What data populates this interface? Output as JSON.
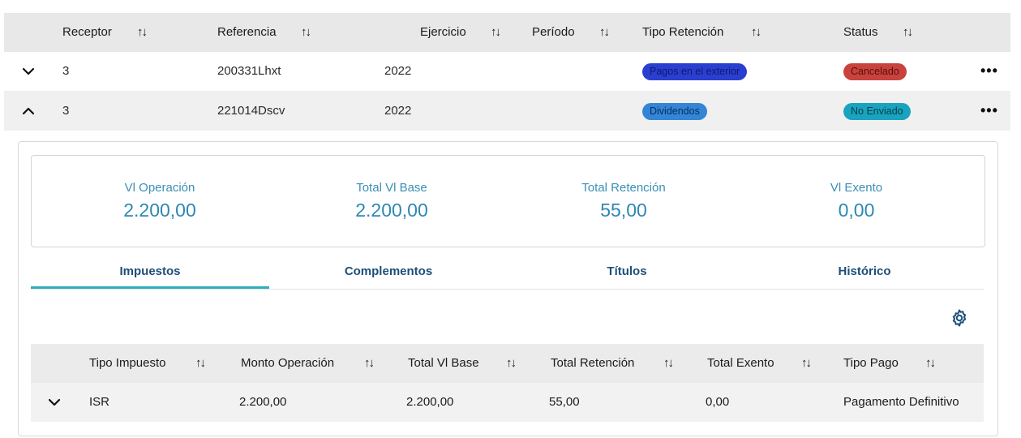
{
  "table": {
    "headers": {
      "receptor": "Receptor",
      "referencia": "Referencia",
      "ejercicio": "Ejercicio",
      "periodo": "Período",
      "tipo_retencion": "Tipo Retención",
      "status": "Status"
    },
    "sort_glyph": "↑↓",
    "rows": [
      {
        "receptor": "3",
        "referencia": "200331Lhxt",
        "ejercicio": "2022",
        "periodo": "",
        "tipo_retencion": "Pagos en el exterior",
        "status": "Cancelado",
        "expanded": false
      },
      {
        "receptor": "3",
        "referencia": "221014Dscv",
        "ejercicio": "2022",
        "periodo": "",
        "tipo_retencion": "Dividendos",
        "status": "No Enviado",
        "expanded": true
      }
    ],
    "more_glyph": "•••"
  },
  "colors": {
    "badge_pagos": "#2a3fcf",
    "badge_cancelado": "#c8433d",
    "badge_dividendos": "#3385d6",
    "badge_no_enviado": "#1aa3bf",
    "accent_teal": "#2eaebe",
    "summary_blue": "#2e87b3",
    "tab_text": "#1d4f78"
  },
  "detail": {
    "summary": [
      {
        "label": "Vl Operación",
        "value": "2.200,00"
      },
      {
        "label": "Total Vl Base",
        "value": "2.200,00"
      },
      {
        "label": "Total Retención",
        "value": "55,00"
      },
      {
        "label": "Vl Exento",
        "value": "0,00"
      }
    ],
    "tabs": [
      "Impuestos",
      "Complementos",
      "Títulos",
      "Histórico"
    ],
    "active_tab": "Impuestos",
    "settings_icon": "gear-icon",
    "sub_table": {
      "headers": {
        "tipo_impuesto": "Tipo Impuesto",
        "monto_operacion": "Monto Operación",
        "total_vl_base": "Total Vl Base",
        "total_retencion": "Total Retención",
        "total_exento": "Total Exento",
        "tipo_pago": "Tipo Pago"
      },
      "rows": [
        {
          "tipo_impuesto": "ISR",
          "monto_operacion": "2.200,00",
          "total_vl_base": "2.200,00",
          "total_retencion": "55,00",
          "total_exento": "0,00",
          "tipo_pago": "Pagamento Definitivo"
        }
      ]
    }
  }
}
